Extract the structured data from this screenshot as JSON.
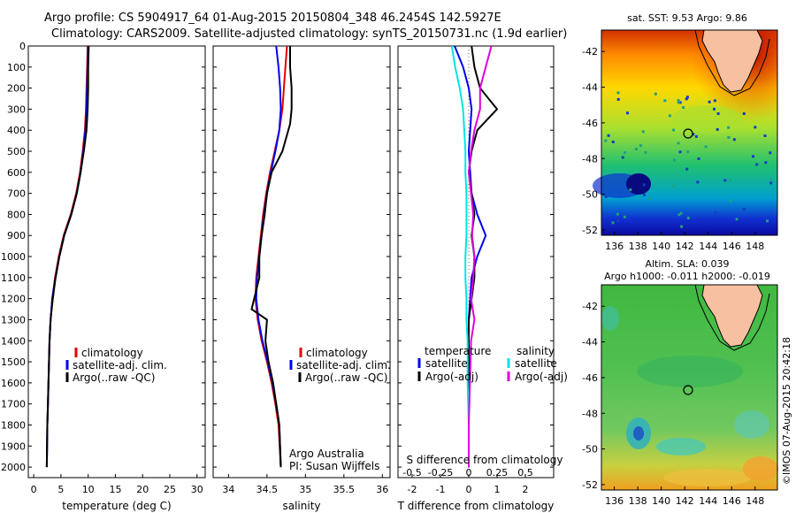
{
  "header": {
    "line1": "Argo profile: CS 5904917_64 01-Aug-2015 20150804_348 46.2454S 142.5927E",
    "line2": "Climatology: CARS2009. Satellite-adjusted climatology: synTS_20150731.nc (1.9d earlier)"
  },
  "credit": {
    "line1": "Argo Australia",
    "line2": "PI: Susan Wijffels",
    "stamp": "©IMOS 07-Aug-2015 20:42:18"
  },
  "legend_ts": [
    "climatology",
    "satellite-adj. clim.",
    "Argo(..raw -QC)"
  ],
  "legend_diff": {
    "temperature_head": "temperature",
    "salinity_head": "salinity",
    "temperature": [
      "satellite",
      "Argo(-adj)"
    ],
    "salinity": [
      "satellite",
      "Argo(-adj)"
    ]
  },
  "maps": {
    "sst_title": "sat. SST: 9.53 Argo: 9.86",
    "sla_title1": "Altim. SLA: 0.039",
    "sla_title2": "Argo h1000: -0.011 h2000: -0.019",
    "lat_ticks": [
      -42,
      -44,
      -46,
      -48,
      -50,
      -52
    ],
    "lon_ticks": [
      136,
      138,
      140,
      142,
      144,
      146,
      148
    ],
    "float_position": {
      "lon": 142.59,
      "lat": -46.25
    }
  },
  "colors": {
    "climatology": "#e00000",
    "satellite": "#0000ee",
    "argo": "#000000",
    "sal_satellite": "#00e5e5",
    "sal_argo": "#dd00dd"
  },
  "chart_data": [
    {
      "type": "line",
      "xlabel": "temperature (deg C)",
      "ylabel": "",
      "xlim": [
        -1,
        31.5
      ],
      "ylim": [
        2050,
        0
      ],
      "x_ticks": [
        0,
        5,
        10,
        15,
        20,
        25,
        30
      ],
      "y_ticks": [
        0,
        100,
        200,
        300,
        400,
        500,
        600,
        700,
        800,
        900,
        1000,
        1100,
        1200,
        1300,
        1400,
        1500,
        1600,
        1700,
        1800,
        1900,
        2000
      ],
      "series": [
        {
          "name": "climatology",
          "x": [
            9.9,
            9.8,
            9.7,
            9.6,
            9.4,
            9.0,
            8.5,
            7.8,
            6.8,
            5.5,
            4.6,
            3.9,
            3.4,
            3.1,
            2.9,
            2.8,
            2.7,
            2.6,
            2.5,
            2.4
          ],
          "y": [
            0,
            100,
            200,
            300,
            400,
            500,
            600,
            700,
            800,
            900,
            1000,
            1100,
            1200,
            1300,
            1400,
            1500,
            1600,
            1700,
            1800,
            2000
          ]
        },
        {
          "name": "satellite-adj. clim.",
          "x": [
            10.0,
            9.9,
            9.8,
            9.7,
            9.5,
            9.1,
            8.6,
            7.9,
            6.9,
            5.6,
            4.7,
            4.0,
            3.4,
            3.1,
            2.9,
            2.8,
            2.7,
            2.6,
            2.5,
            2.4
          ],
          "y": [
            0,
            100,
            200,
            300,
            400,
            500,
            600,
            700,
            800,
            900,
            1000,
            1100,
            1200,
            1300,
            1400,
            1500,
            1600,
            1700,
            1800,
            2000
          ]
        },
        {
          "name": "Argo(..raw -QC)",
          "x": [
            10.1,
            10.0,
            10.0,
            9.9,
            9.7,
            9.2,
            8.6,
            7.9,
            6.9,
            5.6,
            4.7,
            4.0,
            3.5,
            3.1,
            2.9,
            2.8,
            2.7,
            2.6,
            2.5,
            2.4
          ],
          "y": [
            0,
            100,
            200,
            300,
            400,
            500,
            600,
            700,
            800,
            900,
            1000,
            1100,
            1200,
            1300,
            1400,
            1500,
            1600,
            1700,
            1800,
            2000
          ]
        }
      ]
    },
    {
      "type": "line",
      "xlabel": "salinity",
      "ylabel": "",
      "xlim": [
        33.8,
        36.1
      ],
      "ylim": [
        2050,
        0
      ],
      "x_ticks": [
        34,
        34.5,
        35,
        35.5,
        36
      ],
      "series": [
        {
          "name": "climatology",
          "x": [
            34.76,
            34.74,
            34.72,
            34.7,
            34.66,
            34.6,
            34.54,
            34.49,
            34.45,
            34.42,
            34.39,
            34.36,
            34.35,
            34.38,
            34.43,
            34.5,
            34.56,
            34.61,
            34.65,
            34.68
          ],
          "y": [
            0,
            100,
            200,
            300,
            400,
            500,
            600,
            700,
            800,
            900,
            1000,
            1100,
            1200,
            1300,
            1400,
            1500,
            1600,
            1700,
            1800,
            2000
          ]
        },
        {
          "name": "satellite-adj. clim.",
          "x": [
            34.62,
            34.65,
            34.67,
            34.68,
            34.66,
            34.61,
            34.55,
            34.5,
            34.46,
            34.43,
            34.4,
            34.37,
            34.36,
            34.39,
            34.44,
            34.51,
            34.57,
            34.62,
            34.66,
            34.68
          ],
          "y": [
            0,
            100,
            200,
            300,
            400,
            500,
            600,
            700,
            800,
            900,
            1000,
            1100,
            1200,
            1300,
            1400,
            1500,
            1600,
            1700,
            1800,
            2000
          ]
        },
        {
          "name": "Argo(..raw -QC)",
          "x": [
            34.8,
            34.8,
            34.82,
            34.82,
            34.8,
            34.7,
            34.56,
            34.5,
            34.47,
            34.43,
            34.4,
            34.4,
            34.3,
            34.5,
            34.48,
            34.52,
            34.58,
            34.62,
            34.66,
            34.68
          ],
          "y": [
            0,
            100,
            200,
            300,
            370,
            500,
            600,
            700,
            800,
            900,
            1000,
            1100,
            1250,
            1300,
            1400,
            1500,
            1600,
            1700,
            1800,
            2000
          ]
        }
      ]
    },
    {
      "type": "line",
      "xlabel": "T difference from climatology",
      "x2label": "S difference from climatology",
      "xlim": [
        -2.5,
        3
      ],
      "ylim": [
        2050,
        0
      ],
      "x_ticks": [
        -2,
        -1,
        0,
        1,
        2
      ],
      "x2_ticks": [
        "-0.5",
        "-0.25",
        "0",
        "0.25",
        "0.5"
      ],
      "series": [
        {
          "name": "temperature satellite",
          "x": [
            -0.5,
            -0.2,
            0.0,
            0.1,
            0.05,
            0.0,
            0.05,
            0.1,
            0.3,
            0.6,
            0.3,
            0.1,
            0.05,
            0.0,
            0.0,
            0.0,
            0.0,
            0.0
          ],
          "y": [
            0,
            100,
            200,
            300,
            400,
            500,
            600,
            700,
            800,
            900,
            1000,
            1100,
            1200,
            1300,
            1400,
            1600,
            1800,
            2000
          ]
        },
        {
          "name": "temperature Argo(-adj)",
          "x": [
            0.1,
            0.2,
            0.4,
            1.0,
            0.3,
            0.1,
            0.0,
            0.1,
            0.2,
            0.1,
            0.2,
            0.2,
            0.1,
            0.0,
            0.0,
            0.0,
            0.0,
            0.0
          ],
          "y": [
            0,
            100,
            200,
            300,
            400,
            500,
            600,
            700,
            800,
            900,
            1000,
            1100,
            1200,
            1300,
            1400,
            1600,
            1800,
            2000
          ]
        },
        {
          "name": "salinity satellite",
          "x": [
            -0.15,
            -0.12,
            -0.08,
            -0.05,
            -0.04,
            -0.03,
            -0.03,
            -0.02,
            -0.02,
            -0.02,
            -0.03,
            -0.03,
            -0.02,
            -0.02,
            -0.01,
            -0.01,
            0.0,
            0.0
          ],
          "y": [
            0,
            100,
            200,
            300,
            400,
            500,
            600,
            700,
            800,
            900,
            1000,
            1100,
            1200,
            1300,
            1400,
            1600,
            1800,
            2000
          ]
        },
        {
          "name": "salinity Argo(-adj)",
          "x": [
            0.2,
            0.15,
            0.1,
            0.1,
            0.05,
            0.02,
            0.0,
            0.02,
            0.04,
            0.03,
            0.05,
            0.04,
            0.02,
            0.05,
            0.02,
            0.01,
            0.0,
            0.0
          ],
          "y": [
            0,
            100,
            200,
            300,
            400,
            500,
            600,
            700,
            800,
            900,
            1000,
            1100,
            1200,
            1300,
            1400,
            1600,
            1800,
            2000
          ]
        }
      ]
    }
  ]
}
